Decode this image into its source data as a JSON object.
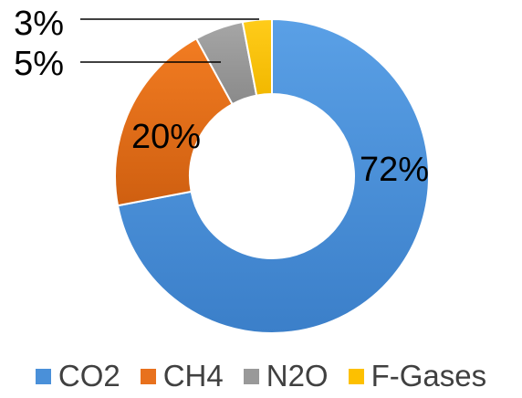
{
  "chart_data": {
    "type": "pie",
    "variant": "donut",
    "slices": [
      {
        "name": "CO2",
        "value": 72,
        "label": "72%",
        "color": "#4a90d9"
      },
      {
        "name": "CH4",
        "value": 20,
        "label": "20%",
        "color": "#e8711d"
      },
      {
        "name": "N2O",
        "value": 5,
        "label": "5%",
        "color": "#999999"
      },
      {
        "name": "F-Gases",
        "value": 3,
        "label": "3%",
        "color": "#fdc000"
      }
    ],
    "legend_position": "bottom"
  }
}
